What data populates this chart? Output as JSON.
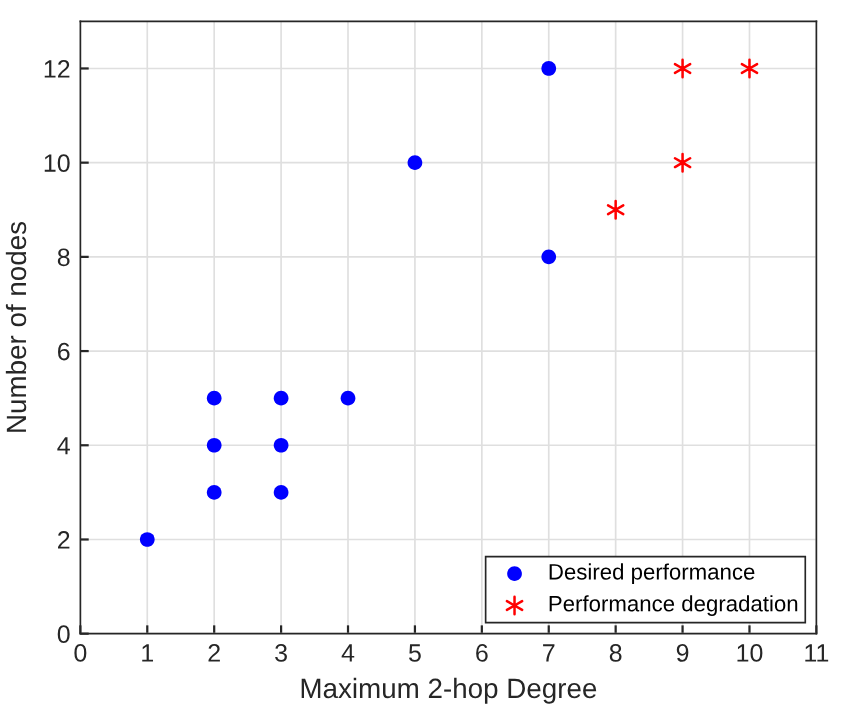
{
  "chart_data": {
    "type": "scatter",
    "xlabel": "Maximum 2-hop Degree",
    "ylabel": "Number of nodes",
    "series": [
      {
        "name": "Desired performance",
        "color": "#0000ff",
        "marker": "circle",
        "x": [
          1,
          2,
          2,
          2,
          3,
          3,
          3,
          4,
          5,
          7,
          7
        ],
        "values": [
          2,
          3,
          4,
          5,
          3,
          4,
          5,
          5,
          10,
          8,
          12
        ]
      },
      {
        "name": "Performance degradation",
        "color": "#ff0000",
        "marker": "cross",
        "x": [
          8,
          9,
          9,
          10
        ],
        "values": [
          9,
          10,
          12,
          12
        ]
      }
    ],
    "xlim": [
      0,
      11
    ],
    "ylim": [
      0,
      13
    ],
    "xticks": [
      0,
      1,
      2,
      3,
      4,
      5,
      6,
      7,
      8,
      9,
      10,
      11
    ],
    "yticks": [
      0,
      2,
      4,
      6,
      8,
      10,
      12
    ],
    "grid": true,
    "legend": "bottom right"
  }
}
